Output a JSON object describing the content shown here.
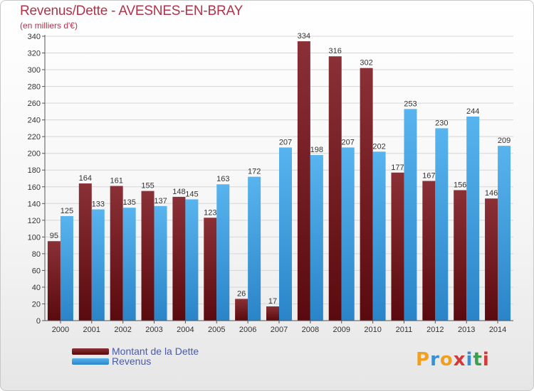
{
  "header": {
    "title": "Revenus/Dette - AVESNES-EN-BRAY",
    "subtitle": "(en milliers d'€)"
  },
  "chart_data": {
    "type": "bar",
    "categories": [
      "2000",
      "2001",
      "2002",
      "2003",
      "2004",
      "2005",
      "2006",
      "2007",
      "2008",
      "2009",
      "2010",
      "2011",
      "2012",
      "2013",
      "2014"
    ],
    "series": [
      {
        "name": "Montant de la Dette",
        "color": "#6e1a1e",
        "values": [
          95,
          164,
          161,
          155,
          148,
          123,
          26,
          17,
          334,
          316,
          302,
          177,
          167,
          156,
          146
        ]
      },
      {
        "name": "Revenus",
        "color": "#3b9ee0",
        "values": [
          125,
          133,
          135,
          137,
          145,
          163,
          172,
          207,
          198,
          207,
          202,
          253,
          230,
          244,
          209
        ]
      }
    ],
    "ylim": [
      0,
      340
    ],
    "ytick_step": 20,
    "grid": true,
    "legend_position": "bottom-left"
  },
  "legend": {
    "items": [
      {
        "label": "Montant de la Dette",
        "color": "#6e1a1e"
      },
      {
        "label": "Revenus",
        "color": "#3b9ee0"
      }
    ]
  },
  "logo": {
    "letters": [
      "P",
      "r",
      "o",
      "x",
      "i",
      "t",
      "i"
    ],
    "colors": [
      "#f0a020",
      "#3a8fd0",
      "#f0a020",
      "#d03a3a",
      "#3a8fd0",
      "#3aa050",
      "#d03a3a"
    ]
  }
}
